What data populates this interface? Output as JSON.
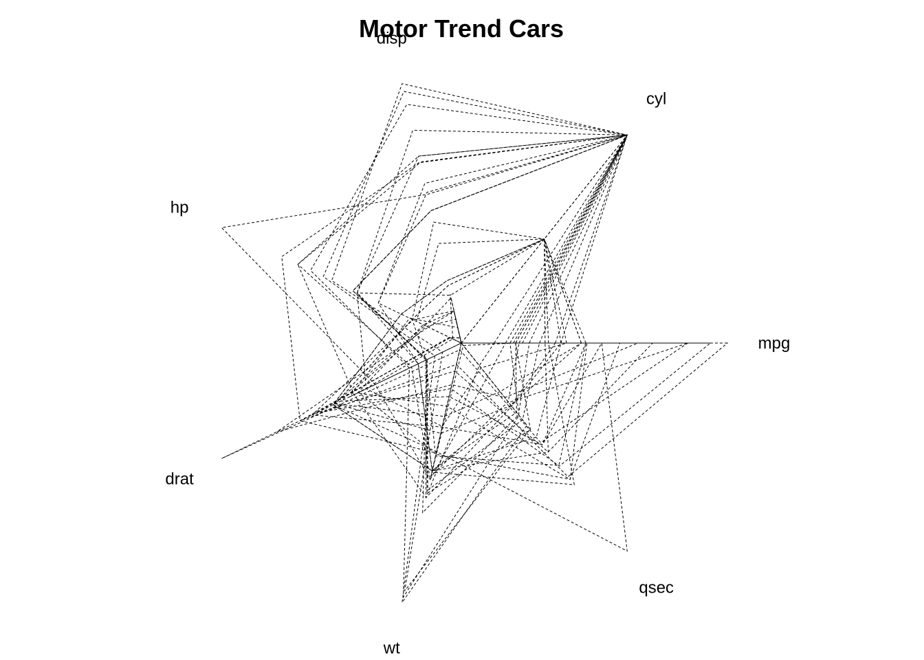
{
  "chart_data": {
    "type": "radar",
    "title": "Motor Trend Cars",
    "axes": [
      "mpg",
      "cyl",
      "disp",
      "hp",
      "drat",
      "wt",
      "qsec"
    ],
    "axis_ranges": {
      "mpg": [
        10.4,
        33.9
      ],
      "cyl": [
        4,
        8
      ],
      "disp": [
        71.1,
        472
      ],
      "hp": [
        52,
        335
      ],
      "drat": [
        2.76,
        4.93
      ],
      "wt": [
        1.513,
        5.424
      ],
      "qsec": [
        14.5,
        22.9
      ]
    },
    "grid": false,
    "legend": "none",
    "line_style": "dashed",
    "line_color": "#000000",
    "series": [
      {
        "values": [
          21.0,
          6,
          160.0,
          110,
          3.9,
          2.62,
          16.46
        ]
      },
      {
        "values": [
          21.0,
          6,
          160.0,
          110,
          3.9,
          2.875,
          17.02
        ]
      },
      {
        "values": [
          22.8,
          4,
          108.0,
          93,
          3.85,
          2.32,
          18.61
        ]
      },
      {
        "values": [
          21.4,
          6,
          258.0,
          110,
          3.08,
          3.215,
          19.44
        ]
      },
      {
        "values": [
          18.7,
          8,
          360.0,
          175,
          3.15,
          3.44,
          17.02
        ]
      },
      {
        "values": [
          18.1,
          6,
          225.0,
          105,
          2.76,
          3.46,
          20.22
        ]
      },
      {
        "values": [
          14.3,
          8,
          360.0,
          245,
          3.21,
          3.57,
          15.84
        ]
      },
      {
        "values": [
          24.4,
          4,
          146.7,
          62,
          3.69,
          3.19,
          20.0
        ]
      },
      {
        "values": [
          22.8,
          4,
          140.8,
          95,
          3.92,
          3.15,
          22.9
        ]
      },
      {
        "values": [
          19.2,
          6,
          167.6,
          123,
          3.92,
          3.44,
          18.3
        ]
      },
      {
        "values": [
          17.8,
          6,
          167.6,
          123,
          3.92,
          3.44,
          18.9
        ]
      },
      {
        "values": [
          16.4,
          8,
          275.8,
          180,
          3.07,
          4.07,
          17.4
        ]
      },
      {
        "values": [
          17.3,
          8,
          275.8,
          180,
          3.07,
          3.73,
          17.6
        ]
      },
      {
        "values": [
          15.2,
          8,
          275.8,
          180,
          3.07,
          3.78,
          18.0
        ]
      },
      {
        "values": [
          10.4,
          8,
          472.0,
          205,
          2.93,
          5.25,
          17.98
        ]
      },
      {
        "values": [
          10.4,
          8,
          460.0,
          215,
          3.0,
          5.424,
          17.82
        ]
      },
      {
        "values": [
          14.7,
          8,
          440.0,
          230,
          3.23,
          5.345,
          17.42
        ]
      },
      {
        "values": [
          32.4,
          4,
          78.7,
          66,
          4.08,
          2.2,
          19.47
        ]
      },
      {
        "values": [
          30.4,
          4,
          75.7,
          52,
          4.93,
          1.615,
          18.52
        ]
      },
      {
        "values": [
          33.9,
          4,
          71.1,
          65,
          4.22,
          1.835,
          19.9
        ]
      },
      {
        "values": [
          21.5,
          4,
          120.1,
          97,
          3.7,
          2.465,
          20.01
        ]
      },
      {
        "values": [
          15.5,
          8,
          318.0,
          150,
          2.76,
          3.52,
          16.87
        ]
      },
      {
        "values": [
          15.2,
          8,
          304.0,
          150,
          3.15,
          3.435,
          17.3
        ]
      },
      {
        "values": [
          13.3,
          8,
          350.0,
          245,
          3.73,
          3.84,
          15.41
        ]
      },
      {
        "values": [
          19.2,
          8,
          400.0,
          175,
          3.08,
          3.845,
          17.05
        ]
      },
      {
        "values": [
          27.3,
          4,
          79.0,
          66,
          4.08,
          1.935,
          18.9
        ]
      },
      {
        "values": [
          26.0,
          4,
          120.3,
          91,
          4.43,
          2.14,
          16.7
        ]
      },
      {
        "values": [
          30.4,
          4,
          95.1,
          113,
          3.77,
          1.513,
          16.9
        ]
      },
      {
        "values": [
          15.8,
          8,
          351.0,
          264,
          4.22,
          3.17,
          14.5
        ]
      },
      {
        "values": [
          19.7,
          6,
          145.0,
          175,
          3.62,
          2.77,
          15.5
        ]
      },
      {
        "values": [
          15.0,
          8,
          301.0,
          335,
          3.54,
          3.57,
          14.6
        ]
      },
      {
        "values": [
          21.4,
          4,
          121.0,
          109,
          4.11,
          2.78,
          18.6
        ]
      }
    ]
  }
}
